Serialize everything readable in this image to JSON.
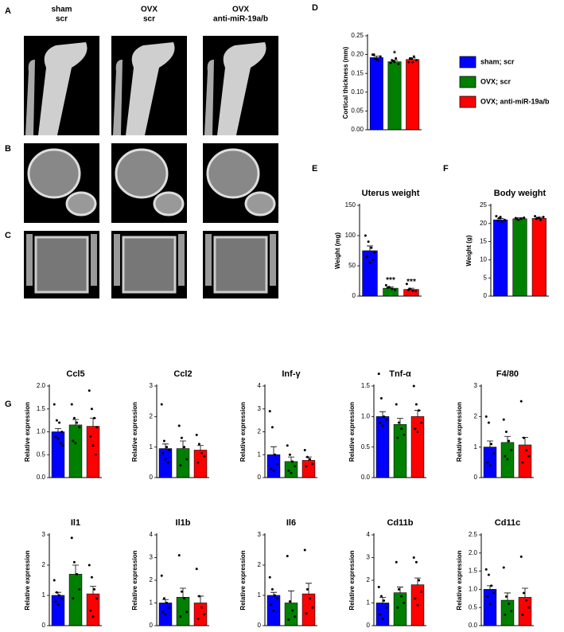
{
  "image_panel": {
    "labels": [
      "A",
      "B",
      "C"
    ],
    "columns": [
      [
        "sham",
        "scr"
      ],
      [
        "OVX",
        "scr"
      ],
      [
        "OVX",
        "anti-miR-19a/b"
      ]
    ]
  },
  "panel_labels": [
    "D",
    "E",
    "F",
    "G"
  ],
  "legend": [
    {
      "name": "sham; scr",
      "color": "#0000ff"
    },
    {
      "name": "OVX; scr",
      "color": "#008000"
    },
    {
      "name": "OVX; anti-miR-19a/b",
      "color": "#ff0000"
    }
  ],
  "chart_data": [
    {
      "type": "bar",
      "ylabel": "Cortical thickness (mm)",
      "ylim": [
        0,
        0.25
      ],
      "yticks": [
        {
          "value": 0,
          "label": "0.00"
        },
        {
          "value": 0.05,
          "label": "0.05"
        },
        {
          "value": 0.1,
          "label": "0.10"
        },
        {
          "value": 0.15,
          "label": "0.15"
        },
        {
          "value": 0.2,
          "label": "0.20"
        },
        {
          "value": 0.25,
          "label": "0.25"
        }
      ],
      "values": [
        0.192,
        0.181,
        0.187
      ],
      "errors": [
        0.004,
        0.004,
        0.004
      ],
      "significance": [
        null,
        "*",
        null
      ],
      "points": [
        [
          0.2,
          0.19,
          0.185,
          0.195,
          0.2,
          0.188
        ],
        [
          0.178,
          0.183,
          0.19,
          0.175,
          0.185,
          0.18
        ],
        [
          0.18,
          0.19,
          0.195,
          0.185,
          0.19,
          0.18
        ]
      ]
    },
    {
      "type": "bar",
      "title": "Uterus weight",
      "ylabel": "Weight (mg)",
      "ylim": [
        0,
        150
      ],
      "yticks": [
        0,
        50,
        100,
        150
      ],
      "values": [
        75,
        13,
        11
      ],
      "errors": [
        8,
        2,
        2
      ],
      "significance": [
        null,
        "***",
        "***"
      ],
      "points": [
        [
          100,
          90,
          80,
          72,
          65,
          55,
          60
        ],
        [
          18,
          15,
          12,
          10,
          14
        ],
        [
          20,
          12,
          9,
          8,
          10
        ]
      ]
    },
    {
      "type": "bar",
      "title": "Body weight",
      "ylabel": "Weight (g)",
      "ylim": [
        0,
        25
      ],
      "yticks": [
        0,
        5,
        10,
        15,
        20,
        25
      ],
      "values": [
        21,
        21.3,
        21.4
      ],
      "errors": [
        0.4,
        0.3,
        0.3
      ],
      "points": [
        [
          22,
          21.5,
          20.5,
          21,
          20.8,
          21.8
        ],
        [
          21.5,
          21,
          21.3,
          21.6,
          21.2
        ],
        [
          22,
          21.5,
          21,
          21.8,
          21.3,
          21.6
        ]
      ]
    },
    {
      "type": "bar",
      "title": "Ccl5",
      "ylabel": "Relative expression",
      "ylim": [
        0,
        2
      ],
      "yticks": [
        {
          "value": 0,
          "label": "0.0"
        },
        {
          "value": 0.5,
          "label": "0.5"
        },
        {
          "value": 1,
          "label": "1.0"
        },
        {
          "value": 1.5,
          "label": "1.5"
        },
        {
          "value": 2,
          "label": "2.0"
        }
      ],
      "values": [
        1.0,
        1.15,
        1.12
      ],
      "errors": [
        0.07,
        0.12,
        0.18
      ],
      "points": [
        [
          1.6,
          1.25,
          1.2,
          1.0,
          0.9,
          0.85,
          0.75,
          0.7
        ],
        [
          1.6,
          1.3,
          1.2,
          1.1,
          0.8,
          0.75
        ],
        [
          1.9,
          1.5,
          1.3,
          1.1,
          0.9,
          0.7,
          0.5
        ]
      ]
    },
    {
      "type": "bar",
      "title": "Ccl2",
      "ylabel": "Relative expression",
      "ylim": [
        0,
        3
      ],
      "yticks": [
        0,
        1,
        2,
        3
      ],
      "values": [
        0.95,
        0.95,
        0.9
      ],
      "errors": [
        0.15,
        0.25,
        0.15
      ],
      "points": [
        [
          2.4,
          1.2,
          1.0,
          0.9,
          0.8,
          0.6,
          0.5
        ],
        [
          1.7,
          1.3,
          1.0,
          0.6,
          0.4
        ],
        [
          1.4,
          1.1,
          0.8,
          0.7,
          0.5
        ]
      ]
    },
    {
      "type": "bar",
      "title": "Inf-γ",
      "ylabel": "Relative expression",
      "ylim": [
        0,
        4
      ],
      "yticks": [
        0,
        1,
        2,
        3,
        4
      ],
      "values": [
        1.0,
        0.7,
        0.75
      ],
      "errors": [
        0.35,
        0.2,
        0.15
      ],
      "points": [
        [
          2.9,
          2.2,
          1.0,
          0.6,
          0.4,
          0.3
        ],
        [
          1.4,
          1.0,
          0.7,
          0.5,
          0.3,
          0.2
        ],
        [
          1.2,
          0.9,
          0.8,
          0.6,
          0.5
        ]
      ]
    },
    {
      "type": "bar",
      "title": "Tnf-α",
      "ylabel": "Relative expression",
      "ylim": [
        0,
        1.5
      ],
      "yticks": [
        {
          "value": 0,
          "label": "0.0"
        },
        {
          "value": 0.5,
          "label": "0.5"
        },
        {
          "value": 1,
          "label": "1.0"
        },
        {
          "value": 1.5,
          "label": "1.5"
        }
      ],
      "values": [
        1.0,
        0.87,
        1.0
      ],
      "errors": [
        0.08,
        0.1,
        0.1
      ],
      "points": [
        [
          1.7,
          1.3,
          1.0,
          0.95,
          0.9,
          0.85
        ],
        [
          1.2,
          0.9,
          0.8,
          0.7,
          0.65
        ],
        [
          1.5,
          1.2,
          1.1,
          0.9,
          0.8,
          0.75
        ]
      ]
    },
    {
      "type": "bar",
      "title": "F4/80",
      "ylabel": "Relative expression",
      "ylim": [
        0,
        3
      ],
      "yticks": [
        0,
        1,
        2,
        3
      ],
      "values": [
        1.0,
        1.15,
        1.07
      ],
      "errors": [
        0.2,
        0.2,
        0.25
      ],
      "points": [
        [
          2.0,
          1.8,
          1.1,
          0.8,
          0.5,
          0.4
        ],
        [
          1.9,
          1.5,
          1.2,
          0.9,
          0.7,
          0.6
        ],
        [
          2.5,
          1.3,
          0.9,
          0.7,
          0.5
        ]
      ]
    },
    {
      "type": "bar",
      "title": "Il1",
      "ylabel": "Relative expression",
      "ylim": [
        0,
        3
      ],
      "yticks": [
        0,
        1,
        2,
        3
      ],
      "values": [
        1.0,
        1.7,
        1.05
      ],
      "errors": [
        0.1,
        0.3,
        0.25
      ],
      "points": [
        [
          1.5,
          1.1,
          1.0,
          0.9,
          0.8,
          0.7
        ],
        [
          2.9,
          2.1,
          1.7,
          1.2,
          0.9
        ],
        [
          2.0,
          1.6,
          1.2,
          0.9,
          0.5,
          0.3
        ]
      ]
    },
    {
      "type": "bar",
      "title": "Il1b",
      "ylabel": "Relative expression",
      "ylim": [
        0,
        4
      ],
      "yticks": [
        0,
        1,
        2,
        3,
        4
      ],
      "values": [
        1.0,
        1.25,
        1.0
      ],
      "errors": [
        0.15,
        0.4,
        0.3
      ],
      "points": [
        [
          2.2,
          1.2,
          1.0,
          0.8,
          0.6,
          0.5
        ],
        [
          3.1,
          1.5,
          1.2,
          0.6,
          0.4
        ],
        [
          2.5,
          1.3,
          0.8,
          0.5,
          0.3
        ]
      ]
    },
    {
      "type": "bar",
      "title": "Il6",
      "ylabel": "Relative expression",
      "ylim": [
        0,
        3
      ],
      "yticks": [
        0,
        1,
        2,
        3
      ],
      "values": [
        1.0,
        0.75,
        1.05
      ],
      "errors": [
        0.1,
        0.4,
        0.35
      ],
      "points": [
        [
          1.6,
          1.2,
          1.0,
          0.9,
          0.7,
          0.5
        ],
        [
          2.3,
          0.8,
          0.5,
          0.3,
          0.2
        ],
        [
          2.5,
          1.2,
          0.9,
          0.6,
          0.4
        ]
      ]
    },
    {
      "type": "bar",
      "title": "Cd11b",
      "ylabel": "Relative expression",
      "ylim": [
        0,
        4
      ],
      "yticks": [
        0,
        1,
        2,
        3,
        4
      ],
      "values": [
        1.0,
        1.45,
        1.8
      ],
      "errors": [
        0.25,
        0.25,
        0.3
      ],
      "points": [
        [
          1.7,
          1.3,
          1.1,
          0.8,
          0.5,
          0.3
        ],
        [
          2.8,
          1.6,
          1.3,
          1.0,
          0.8
        ],
        [
          3.0,
          2.8,
          2.0,
          1.5,
          1.2,
          0.9
        ]
      ]
    },
    {
      "type": "bar",
      "title": "Cd11c",
      "ylabel": "Relative expression",
      "ylim": [
        0,
        2.5
      ],
      "yticks": [
        {
          "value": 0,
          "label": "0.0"
        },
        {
          "value": 0.5,
          "label": "0.5"
        },
        {
          "value": 1,
          "label": "1.0"
        },
        {
          "value": 1.5,
          "label": "1.5"
        },
        {
          "value": 2,
          "label": "2.0"
        },
        {
          "value": 2.5,
          "label": "2.5"
        }
      ],
      "values": [
        1.0,
        0.7,
        0.78
      ],
      "errors": [
        0.1,
        0.2,
        0.25
      ],
      "points": [
        [
          1.55,
          1.4,
          1.1,
          0.9,
          0.8,
          0.6
        ],
        [
          1.6,
          0.8,
          0.6,
          0.4,
          0.3
        ],
        [
          1.9,
          0.9,
          0.7,
          0.5,
          0.3
        ]
      ]
    }
  ]
}
